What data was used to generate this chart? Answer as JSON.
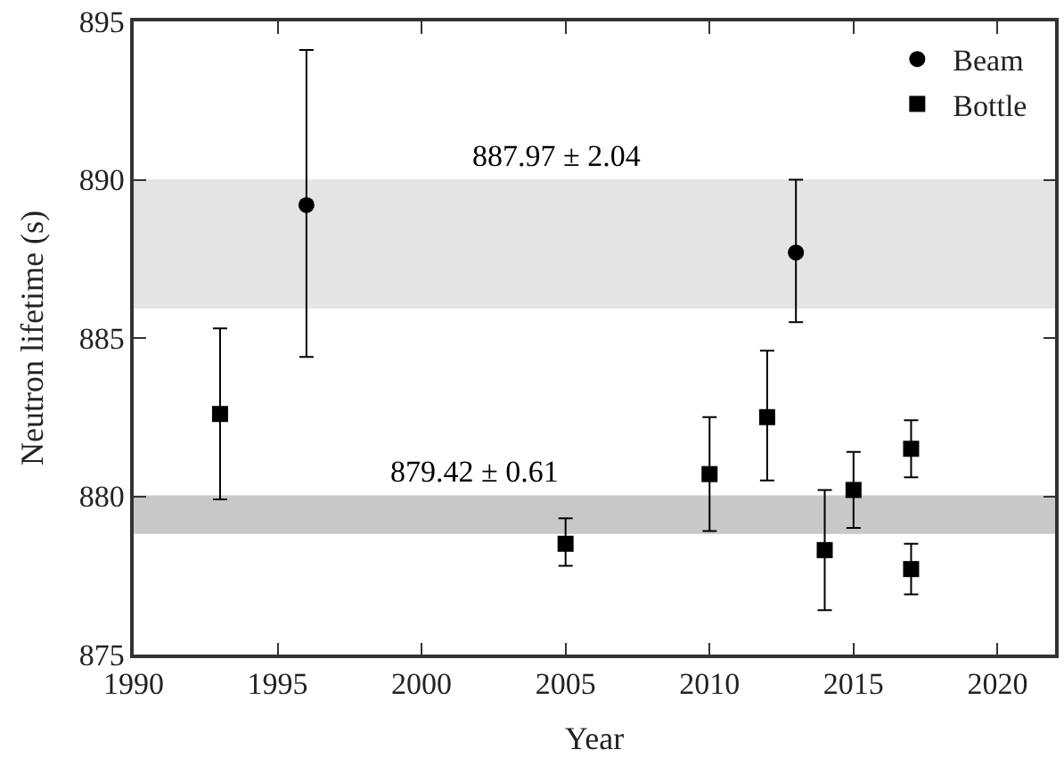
{
  "chart_data": {
    "type": "scatter",
    "xlabel": "Year",
    "ylabel": "Neutron lifetime (s)",
    "xlim": [
      1990,
      2022
    ],
    "xticks": [
      1990,
      1995,
      2000,
      2005,
      2010,
      2015,
      2020
    ],
    "ylim": [
      875,
      895
    ],
    "yticks": [
      875,
      880,
      885,
      890,
      895
    ],
    "series": [
      {
        "name": "Beam",
        "color": "#000000",
        "marker": "circle",
        "x": [
          1996,
          2013
        ],
        "values": [
          889.2,
          887.7
        ],
        "errors": [
          [
            884.4,
            894.1
          ],
          [
            885.5,
            890.0
          ]
        ]
      },
      {
        "name": "Bottle",
        "color": "#000000",
        "marker": "square",
        "x": [
          1993,
          2005,
          2010,
          2012,
          2014,
          2015,
          2017,
          2017
        ],
        "values": [
          882.6,
          878.5,
          880.7,
          882.5,
          878.3,
          880.2,
          881.5,
          877.7
        ],
        "errors": [
          [
            879.9,
            885.3
          ],
          [
            877.8,
            879.3
          ],
          [
            878.9,
            882.5
          ],
          [
            880.5,
            884.6
          ],
          [
            876.4,
            880.2
          ],
          [
            879.0,
            881.4
          ],
          [
            880.6,
            882.4
          ],
          [
            876.9,
            878.5
          ]
        ]
      }
    ],
    "bands": [
      {
        "axis": "y",
        "from": 885.93,
        "to": 890.01,
        "color": "#e4e4e4",
        "label": "887.97 ± 2.04"
      },
      {
        "axis": "y",
        "from": 878.81,
        "to": 880.03,
        "color": "#c8c8c8",
        "label": "879.42 ± 0.61"
      }
    ],
    "legend": "top right",
    "grid": false
  }
}
